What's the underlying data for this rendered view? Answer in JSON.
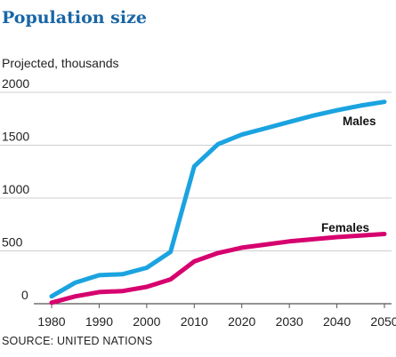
{
  "chart_data": {
    "type": "line",
    "title": "Population size",
    "subtitle": "Projected, thousands",
    "source": "SOURCE: UNITED NATIONS",
    "x": [
      1980,
      1985,
      1990,
      1995,
      2000,
      2005,
      2010,
      2015,
      2020,
      2025,
      2030,
      2035,
      2040,
      2045,
      2050
    ],
    "xticks": [
      "1980",
      "1990",
      "2000",
      "2010",
      "2020",
      "2030",
      "2040",
      "2050"
    ],
    "yticks": [
      "0",
      "500",
      "1000",
      "1500",
      "2000"
    ],
    "ylim": [
      0,
      2000
    ],
    "xlim": [
      1980,
      2050
    ],
    "grid": true,
    "series": [
      {
        "name": "Males",
        "color": "#1ba3e0",
        "values": [
          70,
          200,
          270,
          280,
          340,
          490,
          1300,
          1510,
          1600,
          1660,
          1720,
          1780,
          1830,
          1875,
          1910
        ]
      },
      {
        "name": "Females",
        "color": "#d6006f",
        "values": [
          10,
          70,
          110,
          120,
          160,
          230,
          400,
          480,
          530,
          560,
          590,
          610,
          630,
          645,
          660
        ]
      }
    ],
    "colors": {
      "title": "#1866a6",
      "text": "#222222",
      "grid": "#cfcfcf"
    }
  }
}
